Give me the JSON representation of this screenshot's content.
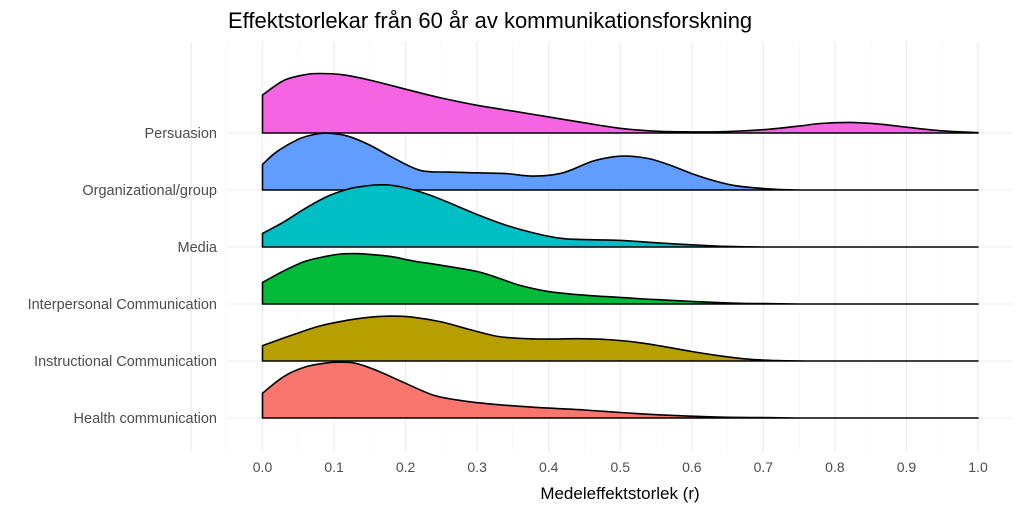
{
  "chart_data": {
    "type": "ridgeline",
    "title": "Effektstorlekar från 60 år av kommunikationsforskning",
    "xlabel": "Medeleffektstorlek (r)",
    "ylabel": "",
    "xlim": [
      0.0,
      1.0
    ],
    "x_ticks": [
      "0.0",
      "0.1",
      "0.2",
      "0.3",
      "0.4",
      "0.5",
      "0.6",
      "0.7",
      "0.8",
      "0.9",
      "1.0"
    ],
    "grid": true,
    "legend": "none",
    "categories": [
      "Persuasion",
      "Organizational/group",
      "Media",
      "Interpersonal Communication",
      "Instructional Communication",
      "Health communication"
    ],
    "series": [
      {
        "name": "Persuasion",
        "color": "#F564E3",
        "x": [
          0.0,
          0.03,
          0.06,
          0.08,
          0.11,
          0.15,
          0.2,
          0.25,
          0.3,
          0.35,
          0.4,
          0.45,
          0.5,
          0.55,
          0.6,
          0.65,
          0.7,
          0.75,
          0.78,
          0.82,
          0.86,
          0.9,
          0.95,
          1.0
        ],
        "density": [
          1.04,
          1.44,
          1.6,
          1.63,
          1.6,
          1.45,
          1.2,
          0.96,
          0.76,
          0.6,
          0.44,
          0.28,
          0.13,
          0.05,
          0.03,
          0.04,
          0.09,
          0.19,
          0.26,
          0.29,
          0.25,
          0.16,
          0.06,
          0.01
        ]
      },
      {
        "name": "Organizational/group",
        "color": "#619CFF",
        "x": [
          0.0,
          0.02,
          0.05,
          0.07,
          0.09,
          0.12,
          0.15,
          0.18,
          0.22,
          0.26,
          0.3,
          0.34,
          0.38,
          0.42,
          0.46,
          0.49,
          0.51,
          0.54,
          0.57,
          0.6,
          0.63,
          0.66,
          0.7,
          0.75,
          0.8,
          0.9,
          1.0
        ],
        "density": [
          0.7,
          1.05,
          1.39,
          1.51,
          1.56,
          1.47,
          1.23,
          0.91,
          0.54,
          0.49,
          0.47,
          0.45,
          0.38,
          0.47,
          0.78,
          0.91,
          0.93,
          0.86,
          0.68,
          0.45,
          0.26,
          0.12,
          0.04,
          0.0,
          0.0,
          0.0,
          0.0
        ]
      },
      {
        "name": "Media",
        "color": "#00BFC4",
        "x": [
          0.0,
          0.03,
          0.06,
          0.09,
          0.12,
          0.14,
          0.16,
          0.18,
          0.2,
          0.23,
          0.26,
          0.3,
          0.34,
          0.38,
          0.42,
          0.46,
          0.5,
          0.54,
          0.58,
          0.62,
          0.66,
          0.7,
          0.75,
          0.8,
          0.9,
          1.0
        ],
        "density": [
          0.37,
          0.69,
          1.06,
          1.38,
          1.59,
          1.66,
          1.7,
          1.69,
          1.62,
          1.45,
          1.22,
          0.89,
          0.6,
          0.38,
          0.23,
          0.2,
          0.18,
          0.13,
          0.08,
          0.04,
          0.01,
          0.0,
          0.0,
          0.0,
          0.0,
          0.0
        ]
      },
      {
        "name": "Interpersonal Communication",
        "color": "#00BA38",
        "x": [
          0.0,
          0.03,
          0.06,
          0.09,
          0.11,
          0.13,
          0.15,
          0.18,
          0.21,
          0.25,
          0.3,
          0.33,
          0.36,
          0.4,
          0.45,
          0.5,
          0.55,
          0.6,
          0.65,
          0.7,
          0.75,
          0.8,
          0.9,
          1.0
        ],
        "density": [
          0.59,
          0.91,
          1.17,
          1.31,
          1.37,
          1.38,
          1.36,
          1.3,
          1.18,
          1.06,
          0.89,
          0.71,
          0.51,
          0.34,
          0.24,
          0.18,
          0.12,
          0.07,
          0.03,
          0.01,
          0.0,
          0.0,
          0.0,
          0.0
        ]
      },
      {
        "name": "Instructional Communication",
        "color": "#B79F00",
        "x": [
          0.0,
          0.04,
          0.08,
          0.12,
          0.15,
          0.18,
          0.21,
          0.25,
          0.29,
          0.33,
          0.37,
          0.4,
          0.44,
          0.48,
          0.52,
          0.56,
          0.6,
          0.64,
          0.68,
          0.72,
          0.76,
          0.8,
          0.9,
          1.0
        ],
        "density": [
          0.42,
          0.7,
          0.96,
          1.12,
          1.2,
          1.23,
          1.2,
          1.07,
          0.86,
          0.67,
          0.61,
          0.6,
          0.61,
          0.59,
          0.52,
          0.4,
          0.26,
          0.14,
          0.05,
          0.01,
          0.0,
          0.0,
          0.0,
          0.0
        ]
      },
      {
        "name": "Health communication",
        "color": "#F8766D",
        "x": [
          0.0,
          0.03,
          0.06,
          0.09,
          0.11,
          0.13,
          0.16,
          0.2,
          0.24,
          0.28,
          0.32,
          0.36,
          0.4,
          0.45,
          0.5,
          0.55,
          0.6,
          0.65,
          0.7,
          0.75,
          0.8,
          0.9,
          1.0
        ],
        "density": [
          0.68,
          1.14,
          1.4,
          1.51,
          1.53,
          1.5,
          1.3,
          0.95,
          0.62,
          0.47,
          0.38,
          0.32,
          0.27,
          0.22,
          0.15,
          0.09,
          0.05,
          0.02,
          0.01,
          0.0,
          0.0,
          0.0,
          0.0
        ]
      }
    ]
  }
}
